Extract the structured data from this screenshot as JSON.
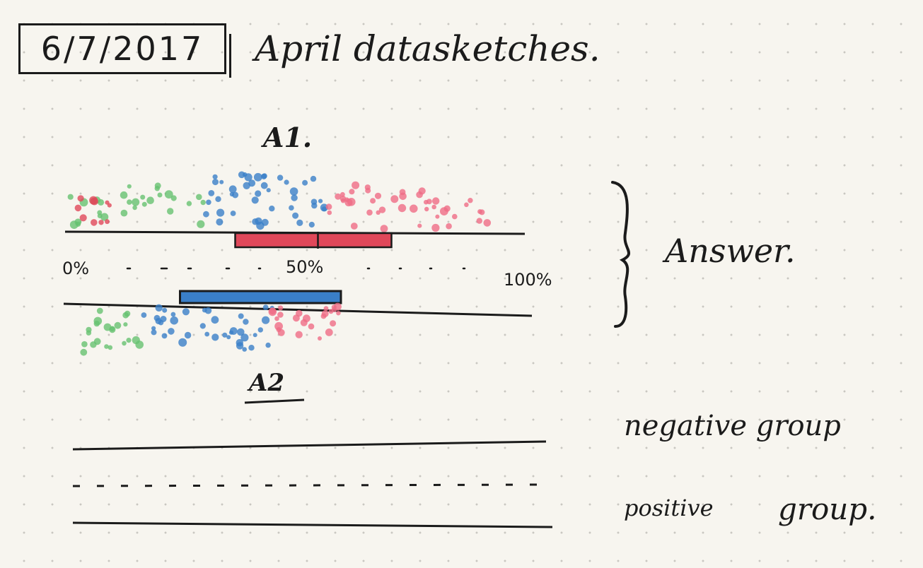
{
  "date": "6/7/2017",
  "title": "April datasketches.",
  "sections": {
    "a1": "A1.",
    "a2": "A2"
  },
  "labels": {
    "answer": "Answer.",
    "negative_group": "negative group",
    "positive_group_word1": "positive",
    "positive_group_word2": "group."
  },
  "axis_ticks": {
    "start": "0%",
    "middle": "50%",
    "end": "100%"
  },
  "colors": {
    "ink": "#1b1b1b",
    "red": "#e0485a",
    "blue": "#3a7fc8",
    "green": "#66c271",
    "pink": "#ef6d86"
  },
  "bars": {
    "top_red_start": 0.37,
    "top_red_mid": 0.55,
    "top_red_end": 0.71,
    "bottom_blue_start": 0.25,
    "bottom_blue_end": 0.6
  }
}
